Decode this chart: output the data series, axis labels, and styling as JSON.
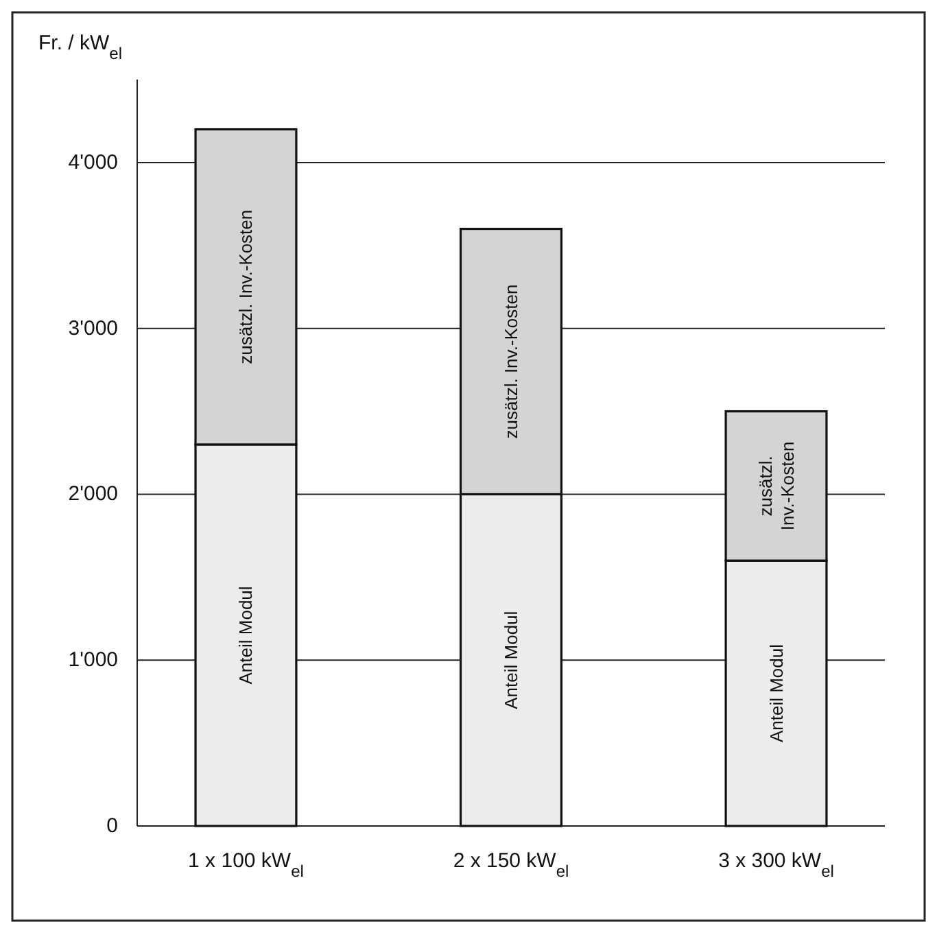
{
  "chart_data": {
    "type": "bar",
    "stacked": true,
    "ylabel": "Fr. / kW$_{el}$",
    "categories": [
      "1 x 100 kW$_{el}$",
      "2 x 150 kW$_{el}$",
      "3 x 300 kW$_{el}$"
    ],
    "series": [
      {
        "name": "Anteil Modul",
        "color": "#ececec",
        "values": [
          2300,
          2000,
          1600
        ]
      },
      {
        "name": "zusätzl. Inv.-Kosten",
        "color": "#d4d4d4",
        "values": [
          1900,
          1600,
          900
        ]
      }
    ],
    "ylim": [
      0,
      4500
    ],
    "yticks": [
      {
        "value": 0,
        "label": "0"
      },
      {
        "value": 1000,
        "label": "1'000"
      },
      {
        "value": 2000,
        "label": "2'000"
      },
      {
        "value": 3000,
        "label": "3'000"
      },
      {
        "value": 4000,
        "label": "4'000"
      }
    ],
    "grid": "y"
  }
}
